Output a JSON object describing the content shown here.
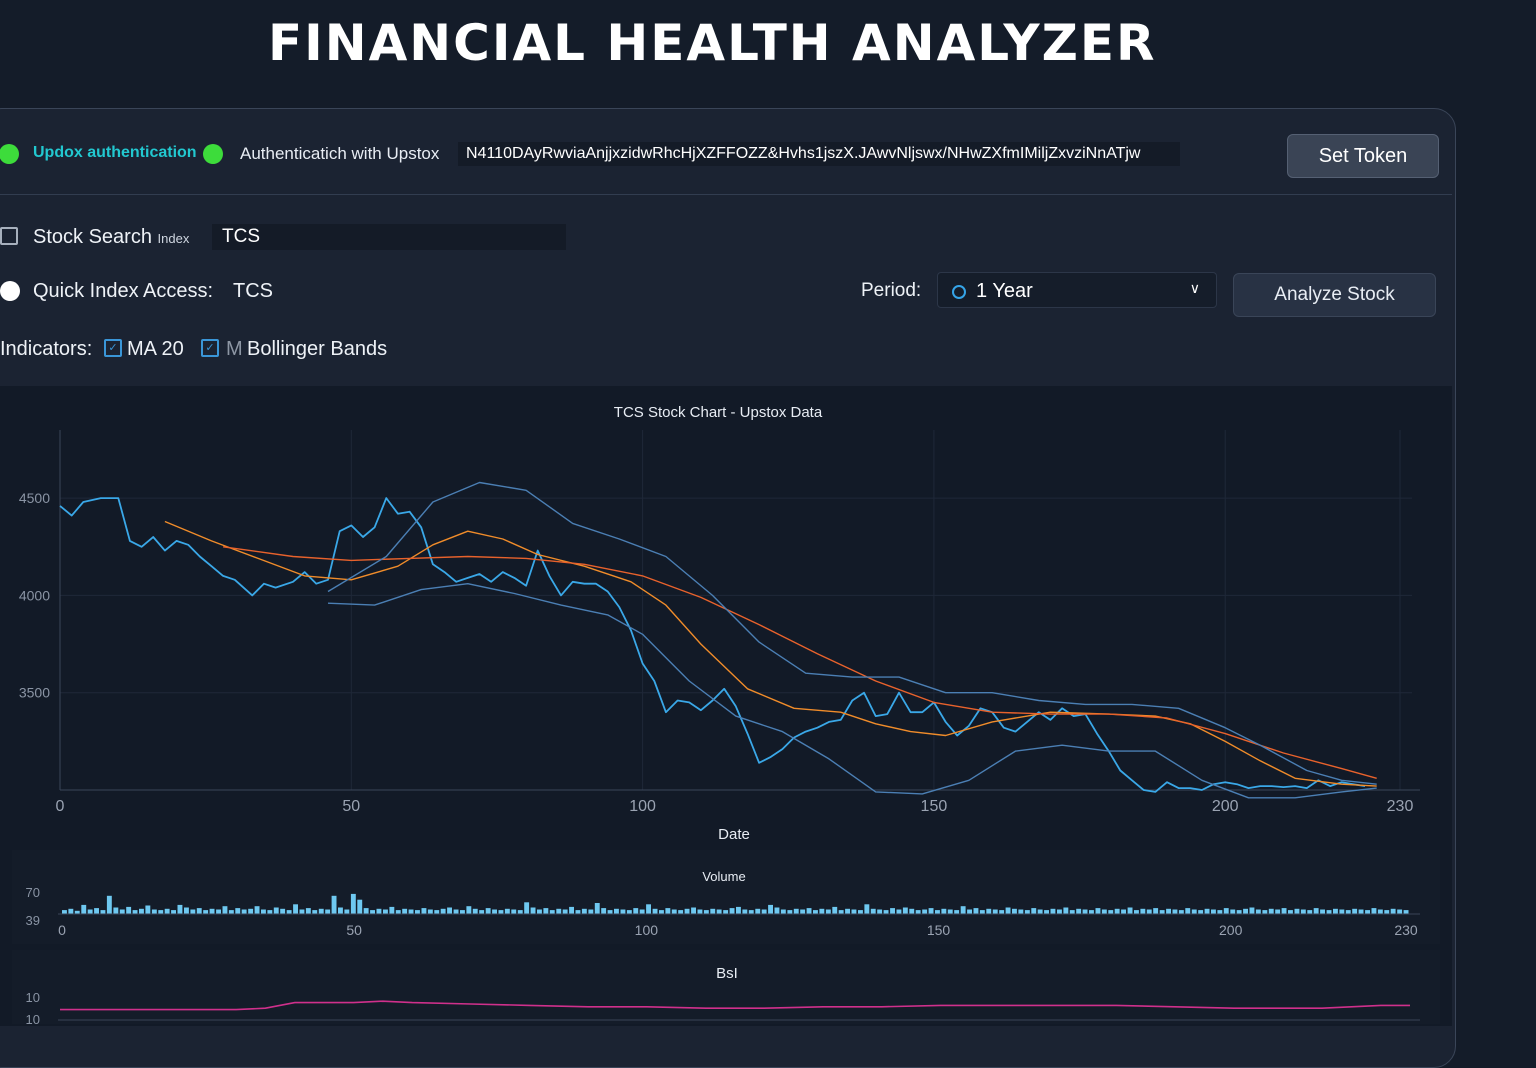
{
  "app": {
    "title": "FINANCIAL HEALTH ANALYZER"
  },
  "auth": {
    "status_label": "Updox authentication",
    "auth_label": "Authenticatich with Upstox",
    "token_value": "N4110DAyRwviaAnjjxzidwRhcHjXZFFOZZ&Hvhs1jszX.JAwvNljswx/NHwZXfmIMiljZxvziNnATjw",
    "set_token_label": "Set Token",
    "colors": {
      "status_dot": "#3ddc3b",
      "status_text": "#22c8d0"
    }
  },
  "search": {
    "label": "Stock Search",
    "sublabel": "Index",
    "value": "TCS"
  },
  "quick_access": {
    "label": "Quick Index Access:",
    "value": "TCS"
  },
  "period": {
    "label": "Period:",
    "selected": "1 Year"
  },
  "analyze_label": "Analyze Stock",
  "indicators": {
    "label": "Indicators:",
    "items": [
      {
        "label": "MA 20",
        "checked": true
      },
      {
        "prefix": "M",
        "label": "Bollinger Bands",
        "checked": true
      }
    ]
  },
  "chart_data": [
    {
      "type": "line",
      "title": "TCS Stock Chart - Upstox Data",
      "xlabel": "Date",
      "ylabel": "",
      "x_ticks": [
        "0",
        "50",
        "100",
        "150",
        "200",
        "230"
      ],
      "y_ticks": [
        "4500",
        "4000",
        "3500"
      ],
      "xlim": [
        0,
        230
      ],
      "ylim": [
        3000,
        4850
      ],
      "grid": true,
      "series": [
        {
          "color": "#3aa8e8",
          "x": [
            0,
            2,
            4,
            7,
            10,
            12,
            14,
            16,
            18,
            20,
            22,
            24,
            26,
            28,
            30,
            33,
            35,
            37,
            40,
            42,
            44,
            46,
            48,
            50,
            52,
            54,
            56,
            58,
            60,
            62,
            64,
            66,
            68,
            70,
            72,
            74,
            76,
            78,
            80,
            82,
            84,
            86,
            88,
            90,
            92,
            94,
            96,
            98,
            100,
            102,
            104,
            106,
            108,
            110,
            112,
            114,
            116,
            118,
            120,
            122,
            124,
            126,
            128,
            130,
            132,
            134,
            136,
            138,
            140,
            142,
            144,
            146,
            148,
            150,
            152,
            154,
            156,
            158,
            160,
            162,
            164,
            166,
            168,
            170,
            172,
            174,
            176,
            178,
            180,
            182,
            184,
            186,
            188,
            190,
            192,
            194,
            196,
            198,
            200,
            202,
            204,
            206,
            208,
            210,
            212,
            214,
            216,
            218,
            220,
            222,
            224
          ],
          "values": [
            4460,
            4410,
            4480,
            4500,
            4500,
            4280,
            4250,
            4300,
            4230,
            4280,
            4260,
            4200,
            4150,
            4100,
            4080,
            4000,
            4060,
            4040,
            4070,
            4120,
            4060,
            4080,
            4330,
            4360,
            4300,
            4350,
            4500,
            4420,
            4430,
            4350,
            4160,
            4120,
            4070,
            4090,
            4110,
            4070,
            4120,
            4090,
            4050,
            4230,
            4100,
            4000,
            4070,
            4060,
            4060,
            4020,
            3940,
            3820,
            3650,
            3560,
            3400,
            3460,
            3450,
            3410,
            3460,
            3520,
            3430,
            3290,
            3140,
            3170,
            3210,
            3270,
            3300,
            3320,
            3350,
            3360,
            3460,
            3500,
            3380,
            3390,
            3500,
            3400,
            3400,
            3450,
            3350,
            3280,
            3330,
            3420,
            3400,
            3320,
            3300,
            3350,
            3400,
            3360,
            3420,
            3380,
            3390,
            3290,
            3200,
            3100,
            3050,
            3000,
            2990,
            3040,
            3010,
            3010,
            3000,
            3030,
            3040,
            3030,
            3010,
            3020,
            3020,
            3015,
            3020,
            3010,
            3050,
            3020,
            3040,
            3030,
            3020
          ]
        },
        {
          "color": "#f08c2a",
          "x": [
            18,
            26,
            34,
            42,
            50,
            58,
            64,
            70,
            76,
            82,
            90,
            98,
            104,
            110,
            118,
            126,
            134,
            140,
            146,
            152,
            160,
            170,
            180,
            188,
            194,
            200,
            206,
            212,
            220,
            226
          ],
          "values": [
            4380,
            4280,
            4190,
            4100,
            4080,
            4150,
            4260,
            4330,
            4290,
            4210,
            4150,
            4070,
            3950,
            3750,
            3520,
            3420,
            3400,
            3340,
            3300,
            3280,
            3350,
            3400,
            3390,
            3380,
            3340,
            3250,
            3150,
            3060,
            3030,
            3020
          ]
        },
        {
          "color": "#e8622c",
          "x": [
            28,
            40,
            50,
            60,
            70,
            80,
            90,
            100,
            110,
            120,
            130,
            140,
            150,
            160,
            170,
            180,
            190,
            200,
            210,
            220,
            226
          ],
          "values": [
            4250,
            4200,
            4180,
            4190,
            4200,
            4190,
            4160,
            4100,
            3990,
            3850,
            3700,
            3560,
            3450,
            3400,
            3390,
            3390,
            3370,
            3290,
            3190,
            3110,
            3060
          ]
        },
        {
          "color": "#4b7fb4",
          "x": [
            46,
            56,
            64,
            72,
            80,
            88,
            96,
            104,
            112,
            120,
            128,
            136,
            144,
            152,
            160,
            168,
            176,
            184,
            192,
            200,
            206,
            214,
            220,
            226
          ],
          "values": [
            4020,
            4200,
            4480,
            4580,
            4540,
            4370,
            4290,
            4200,
            4000,
            3760,
            3600,
            3580,
            3580,
            3500,
            3500,
            3460,
            3440,
            3440,
            3420,
            3320,
            3230,
            3100,
            3050,
            3030
          ]
        },
        {
          "color": "#4b7fb4",
          "x": [
            46,
            54,
            62,
            70,
            78,
            86,
            94,
            100,
            108,
            116,
            124,
            132,
            140,
            148,
            156,
            164,
            172,
            180,
            188,
            196,
            204,
            212,
            220,
            226
          ],
          "values": [
            3960,
            3950,
            4030,
            4060,
            4010,
            3950,
            3900,
            3800,
            3560,
            3380,
            3300,
            3160,
            2990,
            2980,
            3050,
            3200,
            3230,
            3200,
            3200,
            3050,
            2960,
            2960,
            2990,
            3010
          ]
        }
      ]
    },
    {
      "type": "bar",
      "title": "Volume",
      "y_ticks": [
        "70",
        "39"
      ],
      "x_ticks": [
        "0",
        "50",
        "100",
        "150",
        "200",
        "230"
      ],
      "xlim": [
        0,
        230
      ],
      "ylim": [
        30,
        70
      ],
      "values": [
        36,
        38,
        35,
        44,
        37,
        39,
        36,
        58,
        40,
        37,
        41,
        36,
        38,
        43,
        37,
        36,
        38,
        36,
        44,
        40,
        37,
        39,
        36,
        38,
        37,
        42,
        36,
        39,
        37,
        38,
        42,
        37,
        36,
        40,
        38,
        36,
        45,
        37,
        39,
        36,
        38,
        37,
        58,
        40,
        37,
        61,
        52,
        39,
        36,
        38,
        37,
        41,
        36,
        38,
        37,
        36,
        39,
        37,
        36,
        38,
        40,
        37,
        36,
        42,
        38,
        36,
        39,
        37,
        36,
        38,
        37,
        36,
        48,
        40,
        37,
        39,
        36,
        38,
        37,
        41,
        36,
        38,
        37,
        47,
        39,
        36,
        38,
        37,
        36,
        39,
        37,
        45,
        38,
        36,
        39,
        37,
        36,
        38,
        40,
        37,
        36,
        38,
        37,
        36,
        39,
        41,
        37,
        36,
        38,
        37,
        44,
        40,
        37,
        36,
        38,
        37,
        39,
        36,
        38,
        37,
        41,
        36,
        38,
        37,
        36,
        45,
        38,
        37,
        36,
        39,
        37,
        40,
        38,
        36,
        37,
        39,
        36,
        38,
        37,
        36,
        42,
        37,
        39,
        36,
        38,
        37,
        36,
        40,
        38,
        37,
        36,
        39,
        37,
        36,
        38,
        37,
        40,
        36,
        38,
        37,
        36,
        39,
        37,
        36,
        38,
        37,
        40,
        36,
        38,
        37,
        39,
        36,
        38,
        37,
        36,
        39,
        37,
        36,
        38,
        37,
        36,
        39,
        37,
        36,
        38,
        40,
        37,
        36,
        38,
        37,
        39,
        36,
        38,
        37,
        36,
        39,
        37,
        36,
        38,
        37,
        36,
        38,
        37,
        36,
        39,
        37,
        36,
        38,
        37,
        36
      ],
      "color": "#6ec8f0"
    },
    {
      "type": "line",
      "title": "BsI",
      "y_ticks": [
        "10",
        "10"
      ],
      "xlim": [
        0,
        230
      ],
      "ylim": [
        0,
        20
      ],
      "series": [
        {
          "color": "#d0308c",
          "x": [
            0,
            10,
            20,
            30,
            35,
            40,
            50,
            55,
            60,
            70,
            80,
            90,
            100,
            110,
            120,
            130,
            140,
            150,
            160,
            170,
            180,
            190,
            200,
            210,
            215,
            220,
            225,
            230
          ],
          "values": [
            6,
            6,
            6,
            6,
            7,
            11,
            11,
            12,
            11,
            10,
            9,
            8,
            8,
            7,
            7,
            8,
            8,
            9,
            9,
            9,
            9,
            8,
            7,
            7,
            7,
            8,
            9,
            9
          ]
        }
      ]
    }
  ]
}
